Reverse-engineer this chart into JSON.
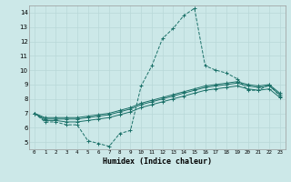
{
  "title": "",
  "xlabel": "Humidex (Indice chaleur)",
  "ylabel": "",
  "background_color": "#cce8e8",
  "grid_color": "#b8d8d8",
  "line_color": "#1a7068",
  "xlim": [
    -0.5,
    23.5
  ],
  "ylim": [
    4.5,
    14.5
  ],
  "yticks": [
    5,
    6,
    7,
    8,
    9,
    10,
    11,
    12,
    13,
    14
  ],
  "xticks": [
    0,
    1,
    2,
    3,
    4,
    5,
    6,
    7,
    8,
    9,
    10,
    11,
    12,
    13,
    14,
    15,
    16,
    17,
    18,
    19,
    20,
    21,
    22,
    23
  ],
  "series": [
    {
      "x": [
        0,
        1,
        2,
        3,
        4,
        5,
        6,
        7,
        8,
        9,
        10,
        11,
        12,
        13,
        14,
        15,
        16,
        17,
        18,
        19,
        20,
        21,
        22,
        23
      ],
      "y": [
        7.0,
        6.4,
        6.4,
        6.2,
        6.2,
        5.1,
        4.9,
        4.7,
        5.6,
        5.8,
        8.9,
        10.3,
        12.2,
        12.9,
        13.8,
        14.3,
        10.3,
        10.0,
        9.8,
        9.4,
        8.6,
        8.6,
        9.0,
        8.2
      ],
      "style": "--",
      "marker": "+"
    },
    {
      "x": [
        0,
        1,
        2,
        3,
        4,
        5,
        6,
        7,
        8,
        9,
        10,
        11,
        12,
        13,
        14,
        15,
        16,
        17,
        18,
        19,
        20,
        21,
        22,
        23
      ],
      "y": [
        7.0,
        6.5,
        6.5,
        6.4,
        6.4,
        6.5,
        6.6,
        6.7,
        6.9,
        7.1,
        7.4,
        7.6,
        7.8,
        8.0,
        8.2,
        8.4,
        8.6,
        8.7,
        8.8,
        8.9,
        8.7,
        8.6,
        8.7,
        8.1
      ],
      "style": "-",
      "marker": "+"
    },
    {
      "x": [
        0,
        1,
        2,
        3,
        4,
        5,
        6,
        7,
        8,
        9,
        10,
        11,
        12,
        13,
        14,
        15,
        16,
        17,
        18,
        19,
        20,
        21,
        22,
        23
      ],
      "y": [
        7.0,
        6.6,
        6.6,
        6.6,
        6.6,
        6.7,
        6.8,
        6.9,
        7.1,
        7.3,
        7.6,
        7.8,
        8.0,
        8.2,
        8.4,
        8.6,
        8.8,
        8.9,
        9.0,
        9.1,
        8.9,
        8.8,
        8.9,
        8.3
      ],
      "style": "-",
      "marker": "+"
    },
    {
      "x": [
        0,
        1,
        2,
        3,
        4,
        5,
        6,
        7,
        8,
        9,
        10,
        11,
        12,
        13,
        14,
        15,
        16,
        17,
        18,
        19,
        20,
        21,
        22,
        23
      ],
      "y": [
        7.0,
        6.7,
        6.7,
        6.7,
        6.7,
        6.8,
        6.9,
        7.0,
        7.2,
        7.4,
        7.7,
        7.9,
        8.1,
        8.3,
        8.5,
        8.7,
        8.9,
        9.0,
        9.1,
        9.2,
        9.0,
        8.9,
        9.0,
        8.4
      ],
      "style": "-",
      "marker": "+"
    }
  ]
}
